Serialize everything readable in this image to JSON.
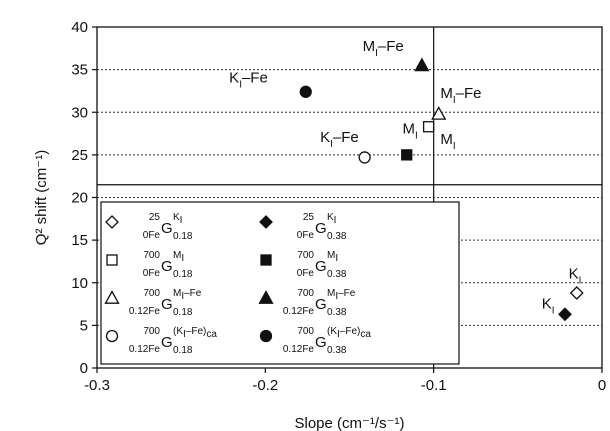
{
  "chart_data": {
    "type": "scatter",
    "xlabel": "Slope (cm⁻¹/s⁻¹)",
    "ylabel": "Q² shift (cm⁻¹)",
    "xlim": [
      -0.3,
      0
    ],
    "ylim": [
      0,
      40
    ],
    "x_ticks": [
      -0.3,
      -0.2,
      -0.1,
      0
    ],
    "x_tick_labels": [
      "-0.3",
      "-0.2",
      "-0.1",
      "0"
    ],
    "y_ticks": [
      0,
      5,
      10,
      15,
      20,
      25,
      30,
      35,
      40
    ],
    "y_tick_labels": [
      "0",
      "5",
      "10",
      "15",
      "20",
      "25",
      "30",
      "35",
      "40"
    ],
    "grid": "horizontal dotted",
    "reference_lines": {
      "vertical_x": -0.1,
      "horizontal_y": 21.5
    },
    "series": [
      {
        "id": "k-018",
        "marker": "diamond-open",
        "x": -0.015,
        "y": 8.8,
        "legend": {
          "pre_sup": "25",
          "pre_sub": "0Fe",
          "main": "G",
          "sup": "K",
          "sup_sub": "I",
          "sub": "0.18"
        }
      },
      {
        "id": "k-038",
        "marker": "diamond-filled",
        "x": -0.022,
        "y": 6.3,
        "legend": {
          "pre_sup": "25",
          "pre_sub": "0Fe",
          "main": "G",
          "sup": "K",
          "sup_sub": "I",
          "sub": "0.38"
        }
      },
      {
        "id": "m-018",
        "marker": "square-open",
        "x": -0.103,
        "y": 28.3,
        "legend": {
          "pre_sup": "700",
          "pre_sub": "0Fe",
          "main": "G",
          "sup": "M",
          "sup_sub": "I",
          "sub": "0.18"
        }
      },
      {
        "id": "m-038",
        "marker": "square-filled",
        "x": -0.116,
        "y": 25.0,
        "legend": {
          "pre_sup": "700",
          "pre_sub": "0Fe",
          "main": "G",
          "sup": "M",
          "sup_sub": "I",
          "sub": "0.38"
        }
      },
      {
        "id": "mfe-018",
        "marker": "triangle-open",
        "x": -0.097,
        "y": 29.8,
        "legend": {
          "pre_sup": "700",
          "pre_sub": "0.12Fe",
          "main": "G",
          "sup": "M",
          "sup_sub": "I",
          "sup_tail": "–Fe",
          "sub": "0.18"
        }
      },
      {
        "id": "mfe-038",
        "marker": "triangle-filled",
        "x": -0.107,
        "y": 35.5,
        "legend": {
          "pre_sup": "700",
          "pre_sub": "0.12Fe",
          "main": "G",
          "sup": "M",
          "sup_sub": "I",
          "sup_tail": "–Fe",
          "sub": "0.38"
        }
      },
      {
        "id": "kfe-018",
        "marker": "circle-open",
        "x": -0.141,
        "y": 24.7,
        "legend": {
          "pre_sup": "700",
          "pre_sub": "0.12Fe",
          "main": "G",
          "sup": "(K",
          "sup_sub": "I",
          "sup_tail": "–Fe)",
          "sup_tail_sub": "ca",
          "sub": "0.18"
        }
      },
      {
        "id": "kfe-038",
        "marker": "circle-filled",
        "x": -0.176,
        "y": 32.4,
        "legend": {
          "pre_sup": "700",
          "pre_sub": "0.12Fe",
          "main": "G",
          "sup": "(K",
          "sup_sub": "I",
          "sup_tail": "–Fe)",
          "sup_tail_sub": "ca",
          "sub": "0.38"
        }
      }
    ],
    "annotations": [
      {
        "id": "ann-k-top",
        "main": "K",
        "sub": "I",
        "tail": "",
        "x": -0.016,
        "y": 10.5,
        "anchor": "middle"
      },
      {
        "id": "ann-k-bot",
        "main": "K",
        "sub": "I",
        "tail": "",
        "x": -0.032,
        "y": 7.0,
        "anchor": "middle"
      },
      {
        "id": "ann-m-right",
        "main": "M",
        "sub": "I",
        "tail": "",
        "x": -0.096,
        "y": 26.3,
        "anchor": "start"
      },
      {
        "id": "ann-m-left",
        "main": "M",
        "sub": "I",
        "tail": "",
        "x": -0.114,
        "y": 27.5,
        "anchor": "middle"
      },
      {
        "id": "ann-mfe-right",
        "main": "M",
        "sub": "I",
        "tail": "–Fe",
        "x": -0.096,
        "y": 31.7,
        "anchor": "start"
      },
      {
        "id": "ann-mfe-top",
        "main": "M",
        "sub": "I",
        "tail": "–Fe",
        "x": -0.13,
        "y": 37.2,
        "anchor": "middle"
      },
      {
        "id": "ann-kfe-left",
        "main": "K",
        "sub": "I",
        "tail": "–Fe",
        "x": -0.156,
        "y": 26.5,
        "anchor": "middle"
      },
      {
        "id": "ann-kfe-top",
        "main": "K",
        "sub": "I",
        "tail": "–Fe",
        "x": -0.21,
        "y": 33.5,
        "anchor": "middle"
      }
    ]
  }
}
